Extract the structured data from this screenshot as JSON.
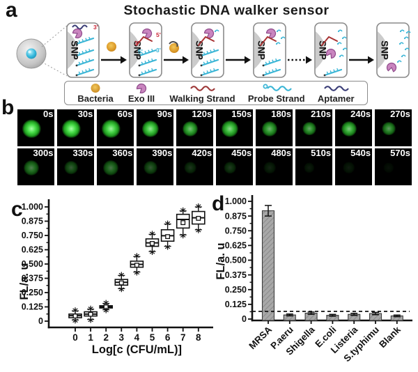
{
  "panels": {
    "a": {
      "label": "a",
      "title": "Stochastic DNA walker sensor",
      "snp_label": "SNP",
      "stages": [
        {
          "probe_strands": 4,
          "fragments": 0,
          "exo": "top",
          "walker": false,
          "aptamer": true,
          "annotations": [
            {
              "text": "3'",
              "color": "#cc2a3a"
            }
          ]
        },
        {
          "probe_strands": 3,
          "fragments": 0,
          "exo": "top",
          "walker": true,
          "aptamer": false,
          "annotations": [
            {
              "text": "5'",
              "color": "#cc2a3a"
            },
            {
              "text": "3'",
              "color": "#cc2a3a"
            },
            {
              "text": "5'",
              "color": "#3cb6d6"
            },
            {
              "text": "3'",
              "color": "#3cb6d6"
            }
          ]
        },
        {
          "probe_strands": 3,
          "fragments": 1,
          "exo": "top",
          "walker": true,
          "aptamer": false,
          "annotations": []
        },
        {
          "probe_strands": 2,
          "fragments": 3,
          "exo": "top",
          "walker": true,
          "aptamer": false,
          "annotations": []
        },
        {
          "probe_strands": 1,
          "fragments": 5,
          "exo": "mid",
          "walker": true,
          "aptamer": false,
          "annotations": []
        },
        {
          "probe_strands": 0,
          "fragments": 7,
          "exo": "low",
          "walker": false,
          "aptamer": false,
          "annotations": []
        }
      ],
      "arrows": [
        "solid",
        "solid",
        "solid",
        "dotted",
        "solid"
      ],
      "legend": [
        {
          "name": "Bacteria",
          "icon": "bacteria-icon",
          "color": "#dc9a28"
        },
        {
          "name": "Exo III",
          "icon": "exo-iii-icon",
          "color": "#c985bf"
        },
        {
          "name": "Walking Strand",
          "icon": "walking-strand-icon",
          "color": "#9e3939"
        },
        {
          "name": "Probe Strand",
          "icon": "probe-strand-icon",
          "color": "#3cb6d6"
        },
        {
          "name": "Aptamer",
          "icon": "aptamer-icon",
          "color": "#3c3f78"
        }
      ],
      "colors": {
        "probe": "#3cb6d6",
        "walker": "#a83434",
        "aptamer": "#3c3f78",
        "exo": "#c985bf",
        "exo_stroke": "#8e4a8a",
        "bacteria": "#dc9a28",
        "dome": "#cbcbcb",
        "box_border": "#8a8a8a"
      }
    },
    "b": {
      "label": "b",
      "dot_color": "#4ade4a",
      "frames": [
        {
          "time": "0s",
          "intensity": 1.0,
          "size": 12
        },
        {
          "time": "30s",
          "intensity": 1.0,
          "size": 12
        },
        {
          "time": "60s",
          "intensity": 0.95,
          "size": 12
        },
        {
          "time": "90s",
          "intensity": 0.9,
          "size": 11
        },
        {
          "time": "120s",
          "intensity": 0.75,
          "size": 10
        },
        {
          "time": "150s",
          "intensity": 0.85,
          "size": 11
        },
        {
          "time": "180s",
          "intensity": 0.7,
          "size": 10
        },
        {
          "time": "210s",
          "intensity": 0.65,
          "size": 9
        },
        {
          "time": "240s",
          "intensity": 0.78,
          "size": 10
        },
        {
          "time": "270s",
          "intensity": 0.6,
          "size": 9
        },
        {
          "time": "300s",
          "intensity": 0.5,
          "size": 10
        },
        {
          "time": "330s",
          "intensity": 0.35,
          "size": 9
        },
        {
          "time": "360s",
          "intensity": 0.45,
          "size": 10
        },
        {
          "time": "390s",
          "intensity": 0.33,
          "size": 9
        },
        {
          "time": "420s",
          "intensity": 0.2,
          "size": 8
        },
        {
          "time": "450s",
          "intensity": 0.22,
          "size": 8
        },
        {
          "time": "480s",
          "intensity": 0.13,
          "size": 8
        },
        {
          "time": "510s",
          "intensity": 0.1,
          "size": 7
        },
        {
          "time": "540s",
          "intensity": 0.1,
          "size": 8
        },
        {
          "time": "570s",
          "intensity": 0.06,
          "size": 7
        }
      ]
    },
    "c": {
      "label": "c"
    },
    "d": {
      "label": "d"
    }
  },
  "chart_data": [
    {
      "type": "box",
      "title": "",
      "xlabel": "Log[c (CFU/mL)]",
      "ylabel": "FL/a. u",
      "categories": [
        "0",
        "1",
        "2",
        "3",
        "4",
        "5",
        "6",
        "7",
        "8"
      ],
      "ylim": [
        0,
        1.0
      ],
      "ytick_values": [
        0,
        0.125,
        0.25,
        0.375,
        0.5,
        0.625,
        0.75,
        0.875,
        1.0
      ],
      "ytick_labels": [
        "0",
        "0.125",
        "0.250",
        "0.375",
        "0.500",
        "0.625",
        "0.750",
        "0.875",
        "1.000"
      ],
      "grid": false,
      "boxes": [
        {
          "low": 0.01,
          "q1": 0.03,
          "median": 0.048,
          "mean": 0.045,
          "q3": 0.062,
          "high": 0.09
        },
        {
          "low": 0.015,
          "q1": 0.045,
          "median": 0.062,
          "mean": 0.06,
          "q3": 0.082,
          "high": 0.105
        },
        {
          "low": 0.1,
          "q1": 0.115,
          "median": 0.125,
          "mean": 0.125,
          "q3": 0.135,
          "high": 0.155
        },
        {
          "low": 0.285,
          "q1": 0.315,
          "median": 0.34,
          "mean": 0.335,
          "q3": 0.365,
          "high": 0.4
        },
        {
          "low": 0.43,
          "q1": 0.472,
          "median": 0.497,
          "mean": 0.49,
          "q3": 0.525,
          "high": 0.565
        },
        {
          "low": 0.61,
          "q1": 0.655,
          "median": 0.685,
          "mean": 0.68,
          "q3": 0.72,
          "high": 0.76
        },
        {
          "low": 0.655,
          "q1": 0.7,
          "median": 0.748,
          "mean": 0.74,
          "q3": 0.8,
          "high": 0.85
        },
        {
          "low": 0.755,
          "q1": 0.815,
          "median": 0.89,
          "mean": 0.862,
          "q3": 0.935,
          "high": 0.965
        },
        {
          "low": 0.8,
          "q1": 0.85,
          "median": 0.905,
          "mean": 0.9,
          "q3": 0.96,
          "high": 1.0
        }
      ]
    },
    {
      "type": "bar",
      "title": "",
      "xlabel": "",
      "ylabel": "FL/a. u",
      "categories": [
        "MRSA",
        "P.aeru",
        "Shigella",
        "E.coli",
        "Listeria",
        "S.typhimu",
        "Blank"
      ],
      "values": [
        0.92,
        0.035,
        0.05,
        0.032,
        0.04,
        0.047,
        0.027
      ],
      "errors": [
        0.045,
        0.008,
        0.01,
        0.008,
        0.009,
        0.01,
        0.007
      ],
      "threshold_dashed_line": 0.065,
      "ylim": [
        0,
        1.0
      ],
      "ytick_values": [
        0,
        0.125,
        0.25,
        0.375,
        0.5,
        0.625,
        0.75,
        0.875,
        1.0
      ],
      "ytick_labels": [
        "0",
        "0.125",
        "0.250",
        "0.375",
        "0.500",
        "0.625",
        "0.750",
        "0.875",
        "1.000"
      ],
      "grid": false,
      "bar_color": "#a8a8a8",
      "bar_hatch": true
    }
  ]
}
